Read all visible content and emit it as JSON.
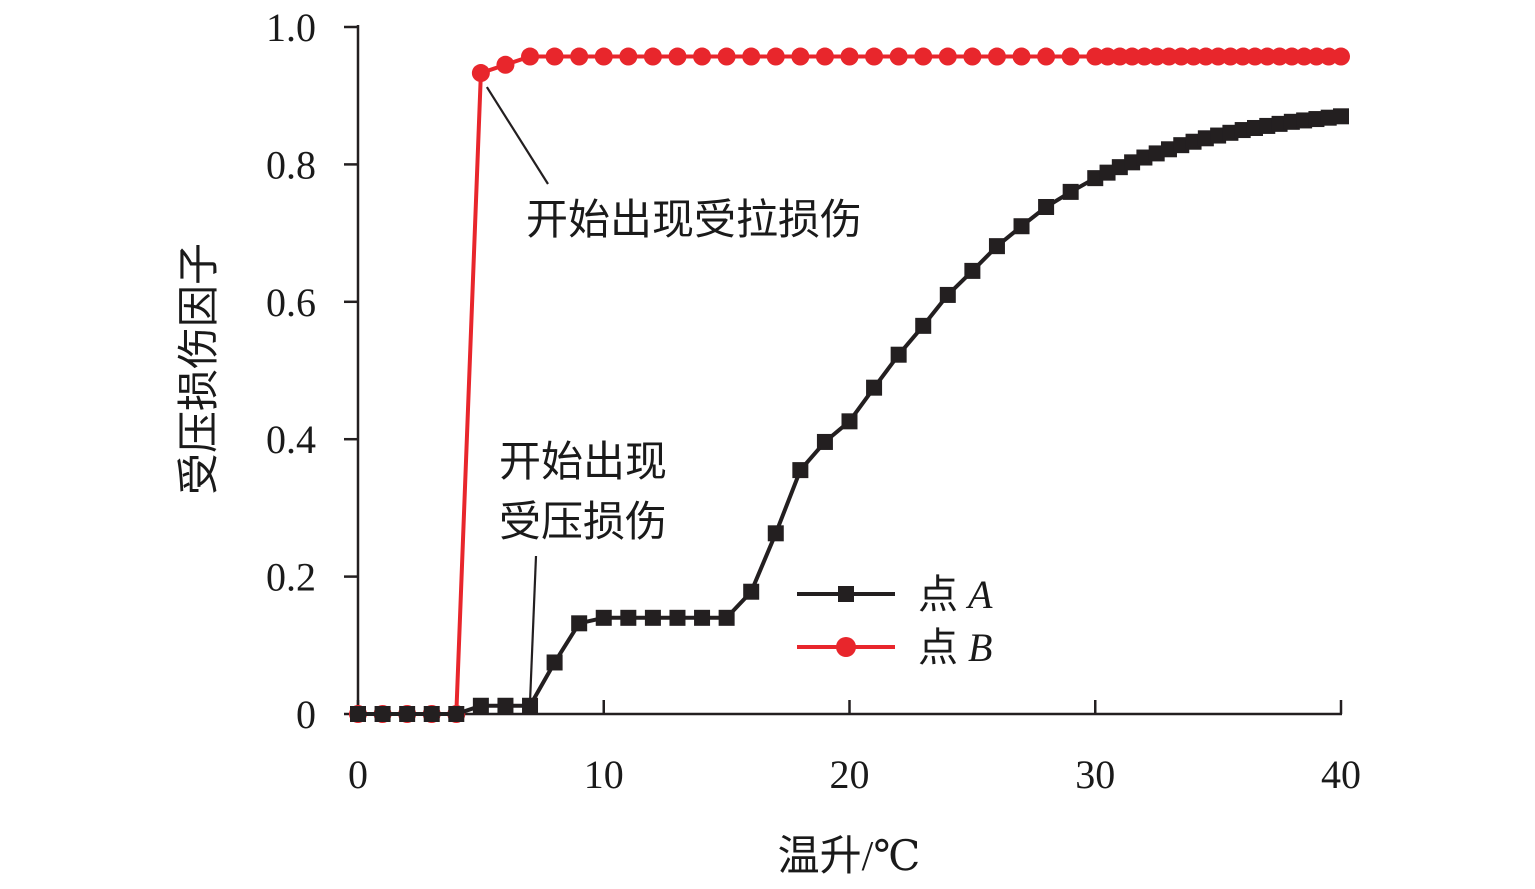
{
  "chart_data": {
    "type": "line",
    "xlabel": "温升/℃",
    "ylabel": "受压损伤因子",
    "xlim": [
      0,
      40
    ],
    "ylim": [
      0,
      1.0
    ],
    "xticks": [
      0,
      10,
      20,
      30,
      40
    ],
    "xtick_labels": [
      "0",
      "10",
      "20",
      "30",
      "40"
    ],
    "yticks": [
      0,
      0.2,
      0.4,
      0.6,
      0.8,
      1.0
    ],
    "ytick_labels": [
      "0",
      "0.2",
      "0.4",
      "0.6",
      "0.8",
      "1.0"
    ],
    "grid": false,
    "legend_position": "center-right",
    "series": [
      {
        "name": "点 A",
        "color": "#231f20",
        "marker": "square",
        "x": [
          0,
          1,
          2,
          3,
          4,
          5,
          6,
          7,
          8,
          9,
          10,
          11,
          12,
          13,
          14,
          15,
          16,
          17,
          18,
          19,
          20,
          21,
          22,
          23,
          24,
          25,
          26,
          27,
          28,
          29,
          30,
          30.5,
          31,
          31.5,
          32,
          32.5,
          33,
          33.5,
          34,
          34.5,
          35,
          35.5,
          36,
          36.5,
          37,
          37.5,
          38,
          38.5,
          39,
          39.5,
          40
        ],
        "y": [
          0,
          0,
          0,
          0,
          0,
          0.012,
          0.012,
          0.012,
          0.075,
          0.132,
          0.14,
          0.14,
          0.14,
          0.14,
          0.14,
          0.14,
          0.178,
          0.263,
          0.355,
          0.396,
          0.426,
          0.475,
          0.523,
          0.565,
          0.61,
          0.645,
          0.681,
          0.71,
          0.738,
          0.76,
          0.78,
          0.788,
          0.796,
          0.803,
          0.81,
          0.816,
          0.822,
          0.828,
          0.833,
          0.838,
          0.842,
          0.846,
          0.85,
          0.853,
          0.856,
          0.859,
          0.862,
          0.864,
          0.866,
          0.868,
          0.87
        ]
      },
      {
        "name": "点 B",
        "color": "#e8262c",
        "marker": "circle",
        "x": [
          0,
          1,
          2,
          3,
          4,
          5,
          6,
          7,
          8,
          9,
          10,
          11,
          12,
          13,
          14,
          15,
          16,
          17,
          18,
          19,
          20,
          21,
          22,
          23,
          24,
          25,
          26,
          27,
          28,
          29,
          30,
          30.5,
          31,
          31.5,
          32,
          32.5,
          33,
          33.5,
          34,
          34.5,
          35,
          35.5,
          36,
          36.5,
          37,
          37.5,
          38,
          38.5,
          39,
          39.5,
          40
        ],
        "y": [
          0,
          0,
          0,
          0,
          0,
          0.933,
          0.945,
          0.957,
          0.957,
          0.957,
          0.957,
          0.957,
          0.957,
          0.957,
          0.957,
          0.957,
          0.957,
          0.957,
          0.957,
          0.957,
          0.957,
          0.957,
          0.957,
          0.957,
          0.957,
          0.957,
          0.957,
          0.957,
          0.957,
          0.957,
          0.957,
          0.957,
          0.957,
          0.957,
          0.957,
          0.957,
          0.957,
          0.957,
          0.957,
          0.957,
          0.957,
          0.957,
          0.957,
          0.957,
          0.957,
          0.957,
          0.957,
          0.957,
          0.957,
          0.957,
          0.957
        ]
      }
    ],
    "annotations": [
      {
        "text_lines": [
          "开始出现受拉损伤"
        ],
        "point_x": 5,
        "point_y": 0.933,
        "text_x": 7,
        "text_y": 0.74
      },
      {
        "text_lines": [
          "开始出现",
          "受压损伤"
        ],
        "point_x": 7,
        "point_y": 0.012,
        "text_x": 5.8,
        "text_y": 0.36
      }
    ]
  }
}
